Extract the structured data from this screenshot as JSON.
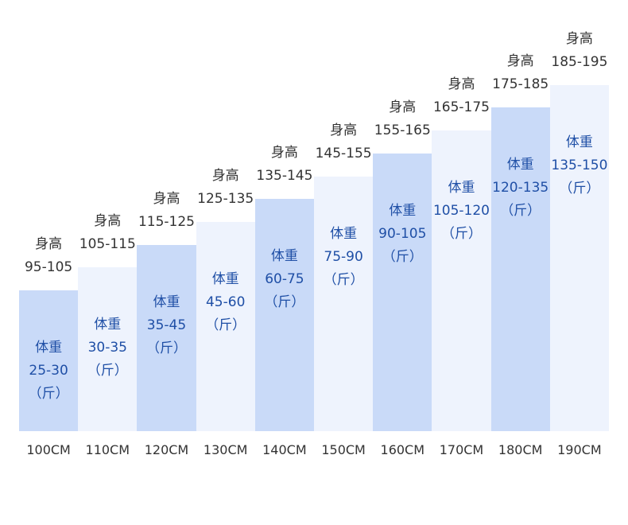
{
  "chart_data": {
    "type": "bar",
    "categories": [
      "100CM",
      "110CM",
      "120CM",
      "130CM",
      "140CM",
      "150CM",
      "160CM",
      "170CM",
      "180CM",
      "190CM"
    ],
    "values": [
      1,
      2,
      3,
      4,
      5,
      6,
      7,
      8,
      9,
      10
    ],
    "bar_labels": [
      {
        "line1": "体重",
        "line2": "25-30",
        "line3": "（斤）"
      },
      {
        "line1": "体重",
        "line2": "30-35",
        "line3": "（斤）"
      },
      {
        "line1": "体重",
        "line2": "35-45",
        "line3": "（斤）"
      },
      {
        "line1": "体重",
        "line2": "45-60",
        "line3": "（斤）"
      },
      {
        "line1": "体重",
        "line2": "60-75",
        "line3": "（斤）"
      },
      {
        "line1": "体重",
        "line2": "75-90",
        "line3": "（斤）"
      },
      {
        "line1": "体重",
        "line2": "90-105",
        "line3": "（斤）"
      },
      {
        "line1": "体重",
        "line2": "105-120",
        "line3": "（斤）"
      },
      {
        "line1": "体重",
        "line2": "120-135",
        "line3": "（斤）"
      },
      {
        "line1": "体重",
        "line2": "135-150",
        "line3": "（斤）"
      }
    ],
    "top_labels": [
      {
        "line1": "身高",
        "line2": "95-105"
      },
      {
        "line1": "身高",
        "line2": "105-115"
      },
      {
        "line1": "身高",
        "line2": "115-125"
      },
      {
        "line1": "身高",
        "line2": "125-135"
      },
      {
        "line1": "身高",
        "line2": "135-145"
      },
      {
        "line1": "身高",
        "line2": "145-155"
      },
      {
        "line1": "身高",
        "line2": "155-165"
      },
      {
        "line1": "身高",
        "line2": "165-175"
      },
      {
        "line1": "身高",
        "line2": "175-185"
      },
      {
        "line1": "身高",
        "line2": "185-195"
      }
    ],
    "colors": {
      "bar_dark": "#c9daf8",
      "bar_light": "#eef3fd",
      "bar_text": "#1f4fa6",
      "label_text": "#333333"
    },
    "title": "",
    "xlabel": "",
    "ylabel": "",
    "grid": false,
    "legend": "none"
  }
}
